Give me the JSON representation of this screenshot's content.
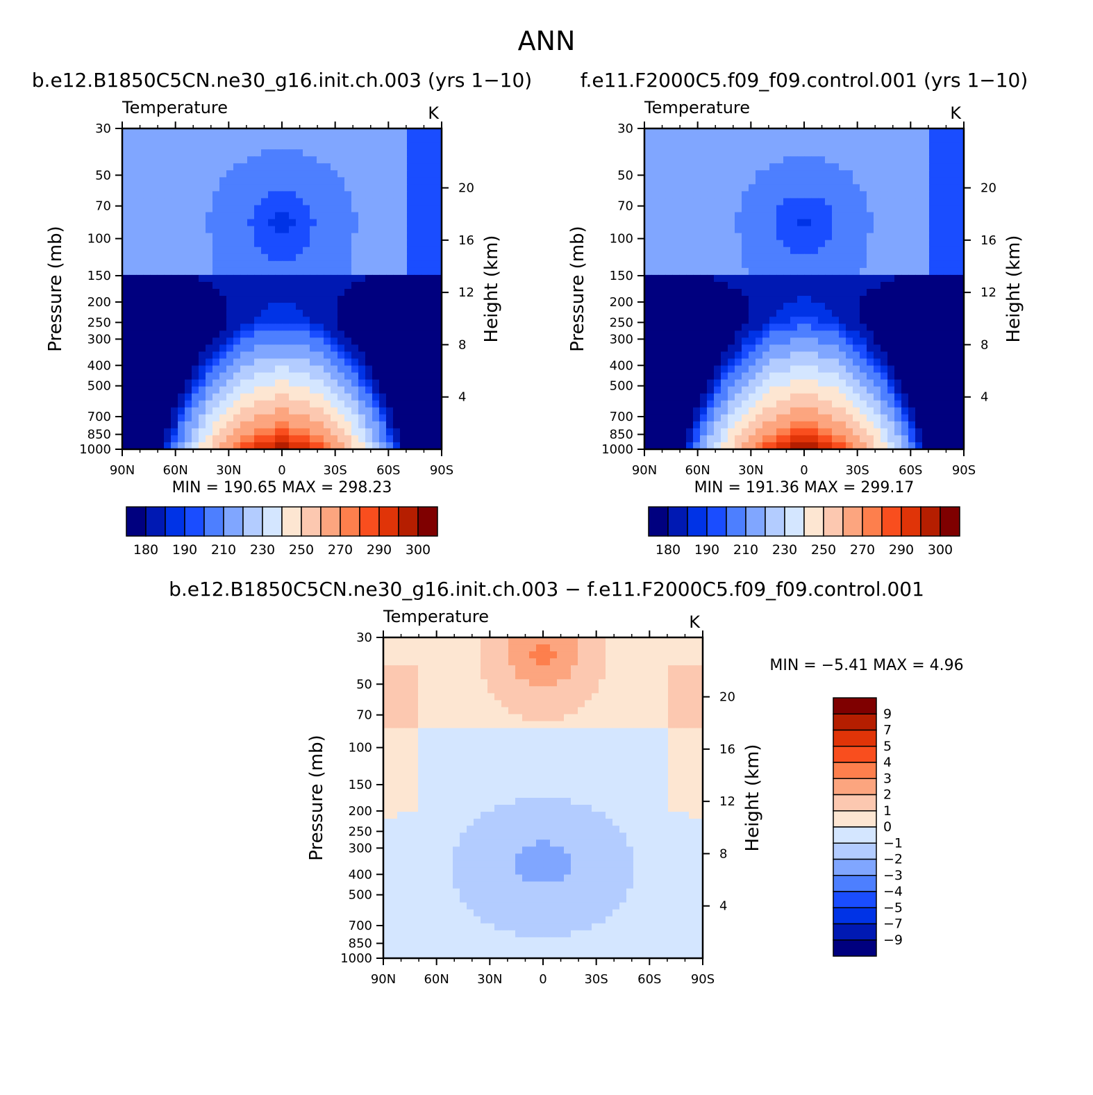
{
  "page": {
    "title": "ANN",
    "difference_title": "b.e12.B1850C5CN.ne30_g16.init.ch.003 − f.e11.F2000C5.f09_f09.control.001"
  },
  "chart_data": [
    {
      "type": "contour",
      "title": "b.e12.B1850C5CN.ne30_g16.init.ch.003 (yrs 1−10)",
      "subtitle_left": "Temperature",
      "units": "K",
      "ylabel": "Pressure (mb)",
      "ylabel_right": "Height (km)",
      "x_ticks": [
        "90N",
        "60N",
        "30N",
        "0",
        "30S",
        "60S",
        "90S"
      ],
      "y_ticks": [
        "30",
        "50",
        "70",
        "100",
        "150",
        "200",
        "250",
        "300",
        "400",
        "500",
        "700",
        "850",
        "1000"
      ],
      "y_right_ticks": [
        "20",
        "16",
        "12",
        "8",
        "4"
      ],
      "stats": "MIN = 190.65 MAX = 298.23",
      "min": 190.65,
      "max": 298.23,
      "levels": [
        180,
        190,
        200,
        210,
        220,
        230,
        240,
        250,
        260,
        270,
        280,
        290,
        295,
        300
      ],
      "colorbar_labels": [
        "180",
        "190",
        "210",
        "230",
        "250",
        "270",
        "290",
        "300"
      ]
    },
    {
      "type": "contour",
      "title": "f.e11.F2000C5.f09_f09.control.001 (yrs 1−10)",
      "subtitle_left": "Temperature",
      "units": "K",
      "ylabel": "Pressure (mb)",
      "ylabel_right": "Height (km)",
      "x_ticks": [
        "90N",
        "60N",
        "30N",
        "0",
        "30S",
        "60S",
        "90S"
      ],
      "y_ticks": [
        "30",
        "50",
        "70",
        "100",
        "150",
        "200",
        "250",
        "300",
        "400",
        "500",
        "700",
        "850",
        "1000"
      ],
      "y_right_ticks": [
        "20",
        "16",
        "12",
        "8",
        "4"
      ],
      "stats": "MIN = 191.36 MAX = 299.17",
      "min": 191.36,
      "max": 299.17,
      "levels": [
        180,
        190,
        200,
        210,
        220,
        230,
        240,
        250,
        260,
        270,
        280,
        290,
        295,
        300
      ],
      "colorbar_labels": [
        "180",
        "190",
        "210",
        "230",
        "250",
        "270",
        "290",
        "300"
      ]
    },
    {
      "type": "contour",
      "title": "",
      "subtitle_left": "Temperature",
      "units": "K",
      "ylabel": "Pressure (mb)",
      "ylabel_right": "Height (km)",
      "x_ticks": [
        "90N",
        "60N",
        "30N",
        "0",
        "30S",
        "60S",
        "90S"
      ],
      "y_ticks": [
        "30",
        "50",
        "70",
        "100",
        "150",
        "200",
        "250",
        "300",
        "400",
        "500",
        "700",
        "850",
        "1000"
      ],
      "y_right_ticks": [
        "20",
        "16",
        "12",
        "8",
        "4"
      ],
      "stats": "MIN = −5.41 MAX = 4.96",
      "min": -5.41,
      "max": 4.96,
      "levels": [
        -9,
        -7,
        -5,
        -4,
        -3,
        -2,
        -1,
        0,
        1,
        2,
        3,
        4,
        5,
        7,
        9
      ],
      "colorbar_labels": [
        "9",
        "7",
        "5",
        "4",
        "3",
        "2",
        "1",
        "0",
        "−1",
        "−2",
        "−3",
        "−4",
        "−5",
        "−7",
        "−9"
      ]
    }
  ],
  "colors": {
    "blue_red_14": [
      "#00007f",
      "#0019b3",
      "#0033e6",
      "#1a4dff",
      "#4d7fff",
      "#80a6ff",
      "#b3ccff",
      "#d4e6ff",
      "#fde6d2",
      "#fcc8b0",
      "#fca57f",
      "#fd7f4d",
      "#f94e1e",
      "#e03408",
      "#b51e00",
      "#7f0000"
    ],
    "diff_16": [
      "#00007f",
      "#0019b3",
      "#0033e6",
      "#1a4dff",
      "#4d7fff",
      "#80a6ff",
      "#b3ccff",
      "#d4e6ff",
      "#fde6d2",
      "#fcc8b0",
      "#fca57f",
      "#fd7f4d",
      "#f94e1e",
      "#e03408",
      "#b51e00",
      "#7f0000"
    ]
  }
}
